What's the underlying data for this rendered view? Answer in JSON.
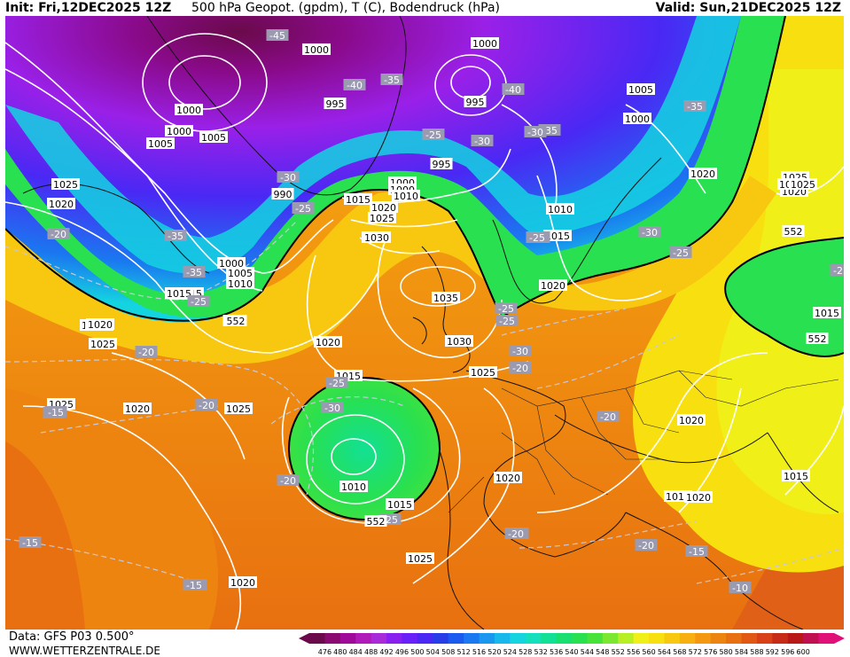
{
  "header": {
    "init": "Init: Fri,12DEC2025 12Z",
    "title": "500 hPa Geopot. (gpdm), T (C), Bodendruck (hPa)",
    "valid": "Valid: Sun,21DEC2025 12Z"
  },
  "footer": {
    "data_source": "Data: GFS P03 0.500°",
    "website": "WWW.WETTERZENTRALE.DE"
  },
  "colorbar": {
    "ticks": [
      "476",
      "480",
      "484",
      "488",
      "492",
      "496",
      "500",
      "504",
      "508",
      "512",
      "516",
      "520",
      "524",
      "528",
      "532",
      "536",
      "540",
      "544",
      "548",
      "552",
      "556",
      "560",
      "564",
      "568",
      "572",
      "576",
      "580",
      "584",
      "588",
      "592",
      "596",
      "600"
    ],
    "colors": [
      "#6a0a4a",
      "#8a0a72",
      "#a00a98",
      "#b01ab8",
      "#a82ad8",
      "#8a20f0",
      "#6a20f8",
      "#4a28f4",
      "#2a3ce8",
      "#1a5aee",
      "#1a78f0",
      "#1a98f0",
      "#18b8ec",
      "#14d4e0",
      "#12e0bc",
      "#12e094",
      "#18e070",
      "#28e050",
      "#48e23a",
      "#7ae830",
      "#b8ee24",
      "#f0f018",
      "#f8e010",
      "#f8c810",
      "#f8b010",
      "#f49810",
      "#ee8410",
      "#e87010",
      "#e05814",
      "#d84018",
      "#c82a18",
      "#b81818",
      "#c01050",
      "#e01078"
    ]
  },
  "map": {
    "pressure_labels": [
      "1000",
      "1000",
      "1000",
      "1005",
      "1005",
      "1005",
      "1000",
      "1025",
      "1020",
      "995",
      "995",
      "1000",
      "1020",
      "1025",
      "990",
      "1000",
      "1000",
      "1010",
      "1015",
      "1020",
      "1025",
      "1030",
      "1010",
      "1015",
      "995",
      "1000",
      "1005",
      "1010",
      "1015",
      "1020",
      "1035",
      "1020",
      "1030",
      "1025",
      "1020",
      "1020",
      "1025",
      "1015",
      "1010",
      "1015",
      "1020",
      "1025",
      "1020",
      "1015",
      "1015",
      "1020",
      "1025",
      "1025",
      "1020",
      "1015",
      "1015",
      "1020",
      "1025",
      "1020",
      "1015",
      "1025",
      "1030",
      "1020",
      "1015"
    ],
    "temperature_labels": [
      "-45",
      "-40",
      "-40",
      "-35",
      "-35",
      "-40",
      "-25",
      "-30",
      "-35",
      "-30",
      "-25",
      "-30",
      "-20",
      "-35",
      "-35",
      "-25",
      "-30",
      "-35",
      "-25",
      "-25",
      "-25",
      "-20",
      "-20",
      "-30",
      "-30",
      "-25",
      "-20",
      "-20",
      "-25",
      "-20",
      "-15",
      "-20",
      "-20",
      "-15",
      "-15",
      "-20",
      "-20",
      "-25",
      "-15",
      "-10",
      "-15",
      "-25",
      "-20",
      "-15"
    ],
    "isoline_labels": [
      "552",
      "552",
      "552",
      "552",
      "552"
    ]
  }
}
